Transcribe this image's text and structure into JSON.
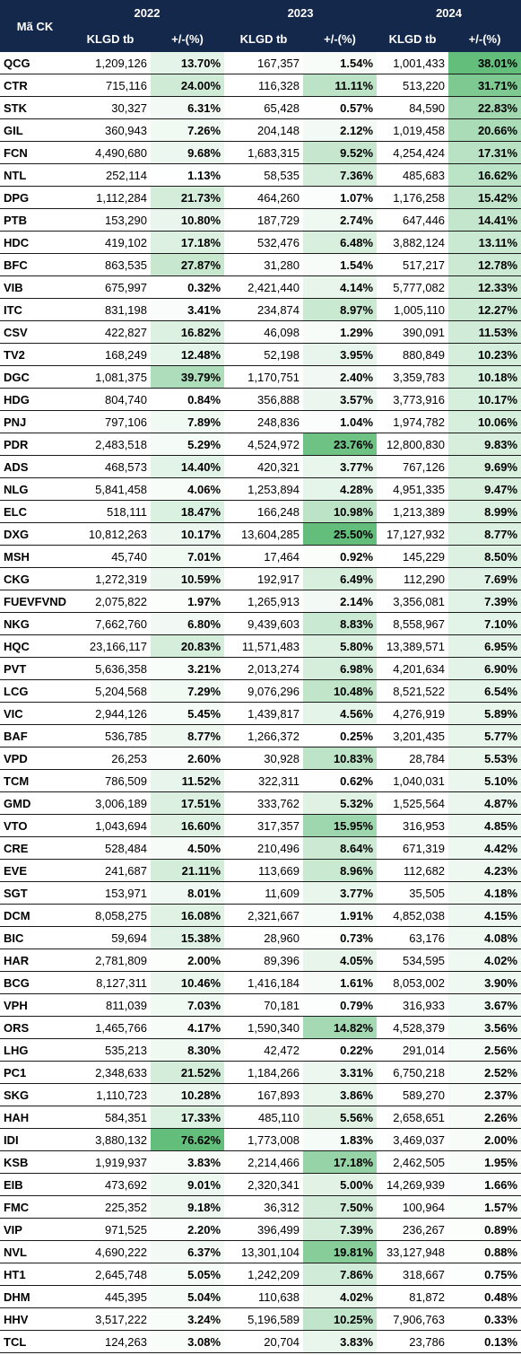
{
  "header": {
    "ticker": "Mã CK",
    "years": [
      "2022",
      "2023",
      "2024"
    ],
    "columns": [
      "KLGD tb",
      "+/-(%)",
      "KLGD tb",
      "+/-(%)",
      "KLGD tb",
      "+/-(%)"
    ]
  },
  "table": {
    "heat_color": "#63be7b",
    "rows": [
      [
        "QCG",
        "1,209,126",
        "13.70%",
        "167,357",
        "1.54%",
        "1,001,433",
        "38.01%"
      ],
      [
        "CTR",
        "715,116",
        "24.00%",
        "116,328",
        "11.11%",
        "513,220",
        "31.71%"
      ],
      [
        "STK",
        "30,327",
        "6.31%",
        "65,428",
        "0.57%",
        "84,590",
        "22.83%"
      ],
      [
        "GIL",
        "360,943",
        "7.26%",
        "204,148",
        "2.12%",
        "1,019,458",
        "20.66%"
      ],
      [
        "FCN",
        "4,490,680",
        "9.68%",
        "1,683,315",
        "9.52%",
        "4,254,424",
        "17.31%"
      ],
      [
        "NTL",
        "252,114",
        "1.13%",
        "58,535",
        "7.36%",
        "485,683",
        "16.62%"
      ],
      [
        "DPG",
        "1,112,284",
        "21.73%",
        "464,260",
        "1.07%",
        "1,176,258",
        "15.42%"
      ],
      [
        "PTB",
        "153,290",
        "10.80%",
        "187,729",
        "2.74%",
        "647,446",
        "14.41%"
      ],
      [
        "HDC",
        "419,102",
        "17.18%",
        "532,476",
        "6.48%",
        "3,882,124",
        "13.11%"
      ],
      [
        "BFC",
        "863,535",
        "27.87%",
        "31,280",
        "1.54%",
        "517,217",
        "12.78%"
      ],
      [
        "VIB",
        "675,997",
        "0.32%",
        "2,421,440",
        "4.14%",
        "5,777,082",
        "12.33%"
      ],
      [
        "ITC",
        "831,198",
        "3.41%",
        "234,874",
        "8.97%",
        "1,005,110",
        "12.27%"
      ],
      [
        "CSV",
        "422,827",
        "16.82%",
        "46,098",
        "1.29%",
        "390,091",
        "11.53%"
      ],
      [
        "TV2",
        "168,249",
        "12.48%",
        "52,198",
        "3.95%",
        "880,849",
        "10.23%"
      ],
      [
        "DGC",
        "1,081,375",
        "39.79%",
        "1,170,751",
        "2.40%",
        "3,359,783",
        "10.18%"
      ],
      [
        "HDG",
        "804,740",
        "0.84%",
        "356,888",
        "3.57%",
        "3,773,916",
        "10.17%"
      ],
      [
        "PNJ",
        "797,106",
        "7.89%",
        "248,836",
        "1.04%",
        "1,974,782",
        "10.06%"
      ],
      [
        "PDR",
        "2,483,518",
        "5.29%",
        "4,524,972",
        "23.76%",
        "12,800,830",
        "9.83%"
      ],
      [
        "ADS",
        "468,573",
        "14.40%",
        "420,321",
        "3.77%",
        "767,126",
        "9.69%"
      ],
      [
        "NLG",
        "5,841,458",
        "4.06%",
        "1,253,894",
        "4.28%",
        "4,951,335",
        "9.47%"
      ],
      [
        "ELC",
        "518,111",
        "18.47%",
        "166,248",
        "10.98%",
        "1,213,389",
        "8.99%"
      ],
      [
        "DXG",
        "10,812,263",
        "10.17%",
        "13,604,285",
        "25.50%",
        "17,127,932",
        "8.77%"
      ],
      [
        "MSH",
        "45,740",
        "7.01%",
        "17,464",
        "0.92%",
        "145,229",
        "8.50%"
      ],
      [
        "CKG",
        "1,272,319",
        "10.59%",
        "192,917",
        "6.49%",
        "112,290",
        "7.69%"
      ],
      [
        "FUEVFVND",
        "2,075,822",
        "1.97%",
        "1,265,913",
        "2.14%",
        "3,356,081",
        "7.39%"
      ],
      [
        "NKG",
        "7,662,760",
        "6.80%",
        "9,439,603",
        "8.83%",
        "8,558,967",
        "7.10%"
      ],
      [
        "HQC",
        "23,166,117",
        "20.83%",
        "11,571,483",
        "5.80%",
        "13,389,571",
        "6.95%"
      ],
      [
        "PVT",
        "5,636,358",
        "3.21%",
        "2,013,274",
        "6.98%",
        "4,201,634",
        "6.90%"
      ],
      [
        "LCG",
        "5,204,568",
        "7.29%",
        "9,076,296",
        "10.48%",
        "8,521,522",
        "6.54%"
      ],
      [
        "VIC",
        "2,944,126",
        "5.45%",
        "1,439,817",
        "4.56%",
        "4,276,919",
        "5.89%"
      ],
      [
        "BAF",
        "536,785",
        "8.77%",
        "1,266,372",
        "0.25%",
        "3,201,435",
        "5.77%"
      ],
      [
        "VPD",
        "26,253",
        "2.60%",
        "30,928",
        "10.83%",
        "28,784",
        "5.53%"
      ],
      [
        "TCM",
        "786,509",
        "11.52%",
        "322,311",
        "0.62%",
        "1,040,031",
        "5.10%"
      ],
      [
        "GMD",
        "3,006,189",
        "17.51%",
        "333,762",
        "5.32%",
        "1,525,564",
        "4.87%"
      ],
      [
        "VTO",
        "1,043,694",
        "16.60%",
        "317,357",
        "15.95%",
        "316,953",
        "4.85%"
      ],
      [
        "CRE",
        "528,484",
        "4.50%",
        "210,496",
        "8.64%",
        "671,319",
        "4.42%"
      ],
      [
        "EVE",
        "241,687",
        "21.11%",
        "113,669",
        "8.96%",
        "112,682",
        "4.23%"
      ],
      [
        "SGT",
        "153,971",
        "8.01%",
        "11,609",
        "3.77%",
        "35,505",
        "4.18%"
      ],
      [
        "DCM",
        "8,058,275",
        "16.08%",
        "2,321,667",
        "1.91%",
        "4,852,038",
        "4.15%"
      ],
      [
        "BIC",
        "59,694",
        "15.38%",
        "28,960",
        "0.73%",
        "63,176",
        "4.08%"
      ],
      [
        "HAR",
        "2,781,809",
        "2.00%",
        "89,396",
        "4.05%",
        "534,595",
        "4.02%"
      ],
      [
        "BCG",
        "8,127,311",
        "10.46%",
        "1,416,184",
        "1.61%",
        "8,053,002",
        "3.90%"
      ],
      [
        "VPH",
        "811,039",
        "7.03%",
        "70,181",
        "0.79%",
        "316,933",
        "3.67%"
      ],
      [
        "ORS",
        "1,465,766",
        "4.17%",
        "1,590,340",
        "14.82%",
        "4,528,379",
        "3.56%"
      ],
      [
        "LHG",
        "535,213",
        "8.30%",
        "42,472",
        "0.22%",
        "291,014",
        "2.56%"
      ],
      [
        "PC1",
        "2,348,633",
        "21.52%",
        "1,184,266",
        "3.31%",
        "6,750,218",
        "2.52%"
      ],
      [
        "SKG",
        "1,110,723",
        "10.28%",
        "167,893",
        "3.86%",
        "589,270",
        "2.37%"
      ],
      [
        "HAH",
        "584,351",
        "17.33%",
        "485,110",
        "5.56%",
        "2,658,651",
        "2.26%"
      ],
      [
        "IDI",
        "3,880,132",
        "76.62%",
        "1,773,008",
        "1.83%",
        "3,469,037",
        "2.00%"
      ],
      [
        "KSB",
        "1,919,937",
        "3.83%",
        "2,214,466",
        "17.18%",
        "2,462,505",
        "1.95%"
      ],
      [
        "EIB",
        "473,692",
        "9.01%",
        "2,320,341",
        "5.00%",
        "14,269,939",
        "1.66%"
      ],
      [
        "FMC",
        "225,352",
        "9.18%",
        "36,312",
        "7.50%",
        "100,964",
        "1.57%"
      ],
      [
        "VIP",
        "971,525",
        "2.20%",
        "396,499",
        "7.39%",
        "236,267",
        "0.89%"
      ],
      [
        "NVL",
        "4,690,222",
        "6.37%",
        "13,301,104",
        "19.81%",
        "33,127,948",
        "0.88%"
      ],
      [
        "HT1",
        "2,645,748",
        "5.05%",
        "1,242,209",
        "7.86%",
        "318,667",
        "0.75%"
      ],
      [
        "DHM",
        "445,395",
        "5.04%",
        "110,638",
        "4.02%",
        "81,872",
        "0.48%"
      ],
      [
        "HHV",
        "3,517,222",
        "3.24%",
        "5,196,589",
        "10.25%",
        "7,906,763",
        "0.33%"
      ],
      [
        "TCL",
        "124,263",
        "3.08%",
        "20,704",
        "3.83%",
        "23,786",
        "0.13%"
      ]
    ]
  }
}
